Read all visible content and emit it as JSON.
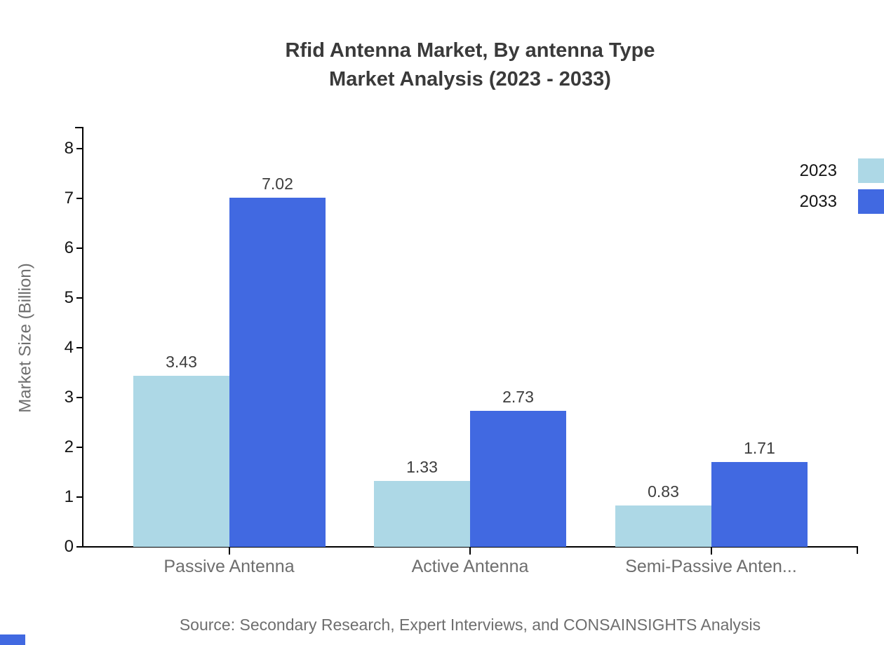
{
  "title": {
    "line1": "Rfid Antenna Market, By antenna Type",
    "line2": "Market Analysis (2023 - 2033)"
  },
  "source": "Source: Secondary Research, Expert Interviews, and CONSAINSIGHTS Analysis",
  "chart_data": {
    "type": "bar",
    "categories": [
      "Passive Antenna",
      "Active Antenna",
      "Semi-Passive Anten..."
    ],
    "series": [
      {
        "name": "2023",
        "color": "#ADD8E6",
        "values": [
          3.43,
          1.33,
          0.83
        ]
      },
      {
        "name": "2033",
        "color": "#4169E1",
        "values": [
          7.02,
          2.73,
          1.71
        ]
      }
    ],
    "value_labels": [
      [
        "3.43",
        "1.33",
        "0.83"
      ],
      [
        "7.02",
        "2.73",
        "1.71"
      ]
    ],
    "title": "Rfid Antenna Market, By antenna Type Market Analysis (2023 - 2033)",
    "xlabel": "",
    "ylabel": "Market Size (Billion)",
    "yticks": [
      0,
      1,
      2,
      3,
      4,
      5,
      6,
      7,
      8
    ],
    "ylim": [
      0,
      8.4
    ],
    "grid": false,
    "legend_position": "top-right"
  },
  "colors": {
    "title": "#3a3a3a",
    "axis": "#000000",
    "tick_label": "#141414",
    "muted_text": "#6e6e6e",
    "value_label": "#3d3d3d",
    "series_2023": "#ADD8E6",
    "series_2033": "#4169E1"
  }
}
